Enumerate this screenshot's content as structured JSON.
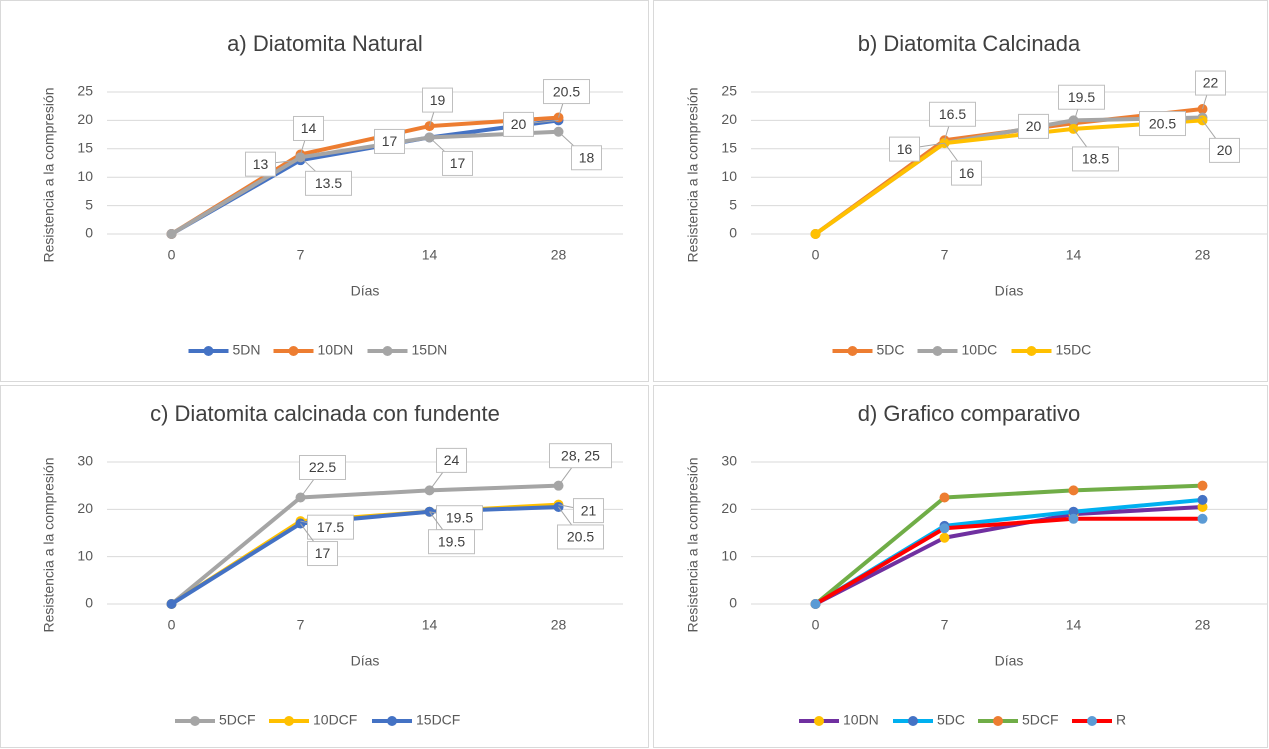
{
  "chart_data": [
    {
      "type": "line",
      "title": "a) Diatomita Natural",
      "xlabel": "Días",
      "ylabel": "Resistencia a la compresión",
      "categories": [
        "0",
        "7",
        "14",
        "28"
      ],
      "ylim": [
        0,
        25
      ],
      "yticks": [
        0,
        5,
        10,
        15,
        20,
        25
      ],
      "grid": true,
      "legend": "bottom",
      "series": [
        {
          "name": "5DN",
          "color": "#4472c4",
          "values": [
            0,
            13,
            17,
            20
          ],
          "value_labels": [
            null,
            "13",
            "17",
            "20"
          ]
        },
        {
          "name": "10DN",
          "color": "#ed7d31",
          "values": [
            0,
            14,
            19,
            20.5
          ],
          "value_labels": [
            null,
            "14",
            "19",
            "20.5"
          ]
        },
        {
          "name": "15DN",
          "color": "#a5a5a5",
          "values": [
            0,
            13.5,
            17,
            18
          ],
          "value_labels": [
            null,
            "13.5",
            "17",
            "18"
          ]
        }
      ]
    },
    {
      "type": "line",
      "title": "b) Diatomita Calcinada",
      "xlabel": "Días",
      "ylabel": "Resistencia a la compresión",
      "categories": [
        "0",
        "7",
        "14",
        "28"
      ],
      "ylim": [
        0,
        25
      ],
      "yticks": [
        0,
        5,
        10,
        15,
        20,
        25
      ],
      "grid": true,
      "legend": "bottom",
      "series": [
        {
          "name": "5DC",
          "color": "#ed7d31",
          "values": [
            0,
            16.5,
            19.5,
            22
          ],
          "value_labels": [
            null,
            "16.5",
            "19.5",
            "22"
          ]
        },
        {
          "name": "10DC",
          "color": "#a5a5a5",
          "values": [
            0,
            16,
            20,
            20.5
          ],
          "value_labels": [
            null,
            "16",
            "20",
            "20.5"
          ]
        },
        {
          "name": "15DC",
          "color": "#ffc000",
          "values": [
            0,
            16,
            18.5,
            20
          ],
          "value_labels": [
            null,
            "16",
            "18.5",
            "20"
          ]
        }
      ]
    },
    {
      "type": "line",
      "title": "c) Diatomita calcinada con fundente",
      "xlabel": "Días",
      "ylabel": "Resistencia a la compresión",
      "categories": [
        "0",
        "7",
        "14",
        "28"
      ],
      "ylim": [
        0,
        30
      ],
      "yticks": [
        0,
        10,
        20,
        30
      ],
      "grid": true,
      "legend": "bottom",
      "series": [
        {
          "name": "5DCF",
          "color": "#a5a5a5",
          "values": [
            0,
            22.5,
            24,
            25
          ],
          "value_labels": [
            null,
            "22.5",
            "24",
            "28, 25"
          ]
        },
        {
          "name": "10DCF",
          "color": "#ffc000",
          "values": [
            0,
            17.5,
            19.5,
            21
          ],
          "value_labels": [
            null,
            "17.5",
            "19.5",
            "21"
          ]
        },
        {
          "name": "15DCF",
          "color": "#4472c4",
          "values": [
            0,
            17,
            19.5,
            20.5
          ],
          "value_labels": [
            null,
            "17",
            "19.5",
            "20.5"
          ]
        }
      ]
    },
    {
      "type": "line",
      "title": "d) Grafico comparativo",
      "xlabel": "Días",
      "ylabel": "Resistencia a la compresión",
      "categories": [
        "0",
        "7",
        "14",
        "28"
      ],
      "ylim": [
        0,
        30
      ],
      "yticks": [
        0,
        10,
        20,
        30
      ],
      "grid": true,
      "legend": "bottom",
      "series": [
        {
          "name": "10DN",
          "color": "#7030a0",
          "marker_color": "#ffc000",
          "values": [
            0,
            14,
            19,
            20.5
          ]
        },
        {
          "name": "5DC",
          "color": "#00b0f0",
          "marker_color": "#4472c4",
          "values": [
            0,
            16.5,
            19.5,
            22
          ]
        },
        {
          "name": "5DCF",
          "color": "#70ad47",
          "marker_color": "#ed7d31",
          "values": [
            0,
            22.5,
            24,
            25
          ]
        },
        {
          "name": "R",
          "color": "#ff0000",
          "marker_color": "#5b9bd5",
          "values": [
            0,
            16,
            18,
            18
          ]
        }
      ]
    }
  ]
}
